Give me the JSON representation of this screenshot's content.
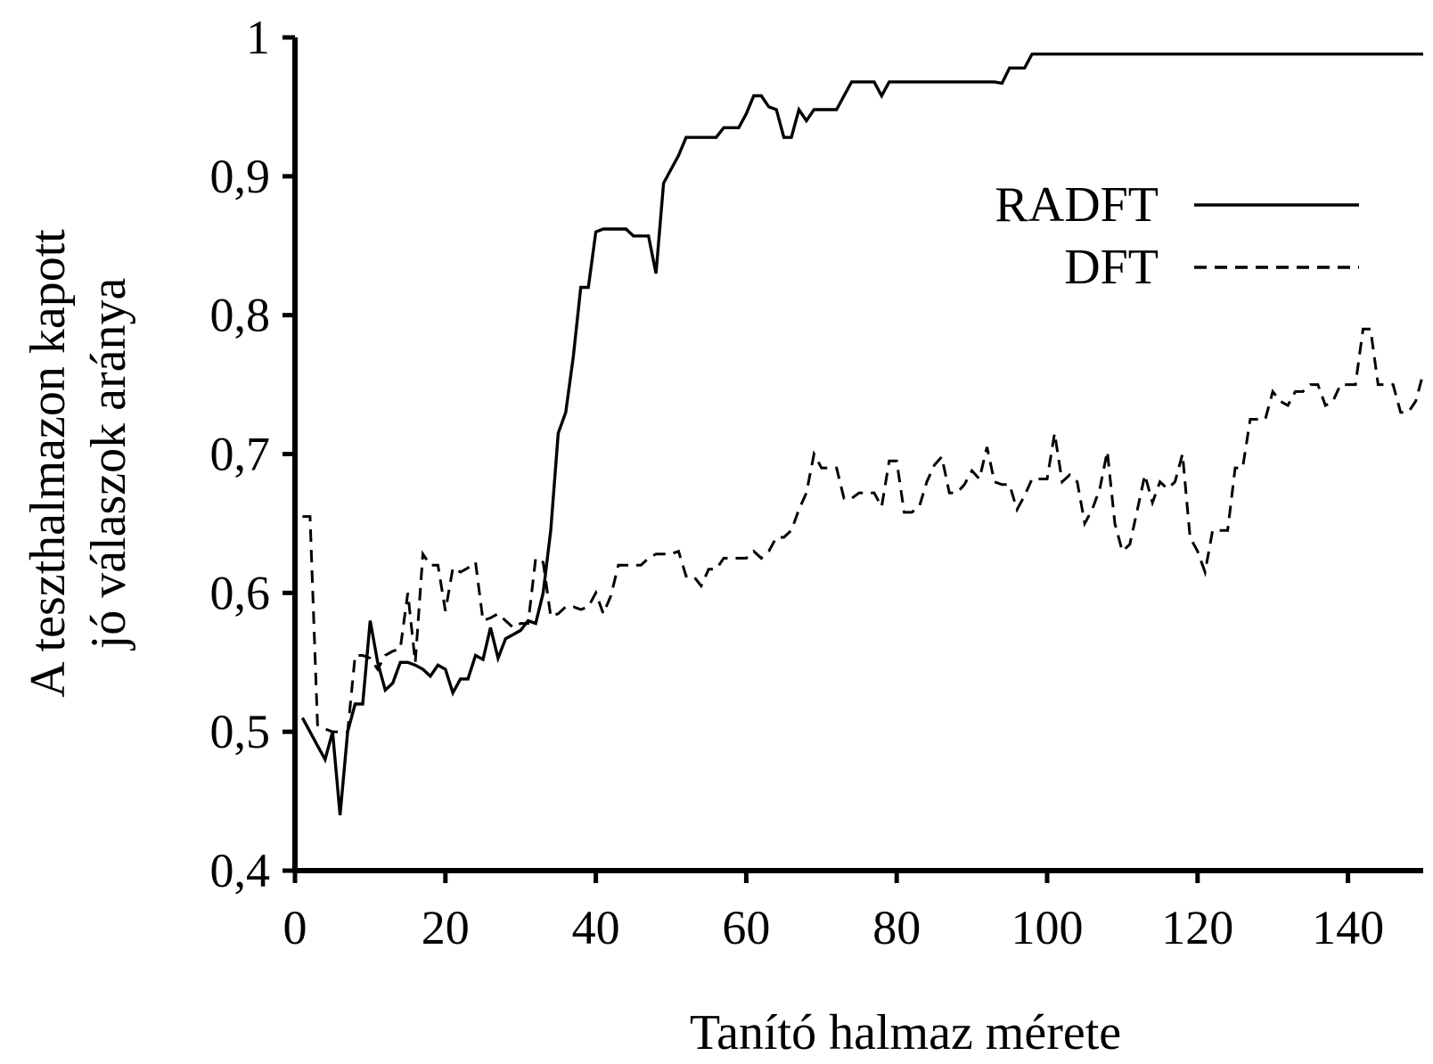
{
  "chart_data": {
    "type": "line",
    "xlabel": "Tanító halmaz mérete",
    "ylabel_lines": [
      "A teszthalmazon kapott",
      "jó válaszok aránya"
    ],
    "xlim": [
      0,
      150
    ],
    "ylim": [
      0.4,
      1.0
    ],
    "x_ticks": [
      {
        "value": 0,
        "label": "0"
      },
      {
        "value": 20,
        "label": "20"
      },
      {
        "value": 40,
        "label": "40"
      },
      {
        "value": 60,
        "label": "60"
      },
      {
        "value": 80,
        "label": "80"
      },
      {
        "value": 100,
        "label": "100"
      },
      {
        "value": 120,
        "label": "120"
      },
      {
        "value": 140,
        "label": "140"
      }
    ],
    "y_ticks": [
      {
        "value": 0.4,
        "label": "0,4"
      },
      {
        "value": 0.5,
        "label": "0,5"
      },
      {
        "value": 0.6,
        "label": "0,6"
      },
      {
        "value": 0.7,
        "label": "0,7"
      },
      {
        "value": 0.8,
        "label": "0,8"
      },
      {
        "value": 0.9,
        "label": "0,9"
      },
      {
        "value": 1.0,
        "label": "1"
      }
    ],
    "grid": false,
    "legend_position": "top-right",
    "series": [
      {
        "name": "RADFT",
        "style": "solid",
        "color": "#000000",
        "points": [
          [
            1,
            0.51
          ],
          [
            3,
            0.49
          ],
          [
            4,
            0.48
          ],
          [
            5,
            0.5
          ],
          [
            6,
            0.44
          ],
          [
            7,
            0.5
          ],
          [
            8,
            0.52
          ],
          [
            9,
            0.52
          ],
          [
            10,
            0.58
          ],
          [
            11,
            0.55
          ],
          [
            12,
            0.53
          ],
          [
            13,
            0.535
          ],
          [
            14,
            0.55
          ],
          [
            15,
            0.55
          ],
          [
            16,
            0.548
          ],
          [
            17,
            0.545
          ],
          [
            18,
            0.54
          ],
          [
            19,
            0.548
          ],
          [
            20,
            0.545
          ],
          [
            21,
            0.528
          ],
          [
            22,
            0.538
          ],
          [
            23,
            0.538
          ],
          [
            24,
            0.555
          ],
          [
            25,
            0.552
          ],
          [
            26,
            0.575
          ],
          [
            27,
            0.553
          ],
          [
            28,
            0.567
          ],
          [
            29,
            0.57
          ],
          [
            30,
            0.573
          ],
          [
            31,
            0.58
          ],
          [
            32,
            0.578
          ],
          [
            33,
            0.6
          ],
          [
            34,
            0.645
          ],
          [
            35,
            0.715
          ],
          [
            36,
            0.73
          ],
          [
            37,
            0.77
          ],
          [
            38,
            0.82
          ],
          [
            39,
            0.82
          ],
          [
            40,
            0.86
          ],
          [
            41,
            0.862
          ],
          [
            42,
            0.862
          ],
          [
            43,
            0.862
          ],
          [
            44,
            0.862
          ],
          [
            45,
            0.857
          ],
          [
            46,
            0.857
          ],
          [
            47,
            0.857
          ],
          [
            48,
            0.83
          ],
          [
            49,
            0.895
          ],
          [
            50,
            0.905
          ],
          [
            51,
            0.915
          ],
          [
            52,
            0.928
          ],
          [
            53,
            0.928
          ],
          [
            54,
            0.928
          ],
          [
            55,
            0.928
          ],
          [
            56,
            0.928
          ],
          [
            57,
            0.935
          ],
          [
            58,
            0.935
          ],
          [
            59,
            0.935
          ],
          [
            60,
            0.945
          ],
          [
            61,
            0.958
          ],
          [
            62,
            0.958
          ],
          [
            63,
            0.95
          ],
          [
            64,
            0.948
          ],
          [
            65,
            0.928
          ],
          [
            66,
            0.928
          ],
          [
            67,
            0.948
          ],
          [
            68,
            0.94
          ],
          [
            69,
            0.948
          ],
          [
            70,
            0.948
          ],
          [
            71,
            0.948
          ],
          [
            72,
            0.948
          ],
          [
            73,
            0.958
          ],
          [
            74,
            0.968
          ],
          [
            75,
            0.968
          ],
          [
            76,
            0.968
          ],
          [
            77,
            0.968
          ],
          [
            78,
            0.958
          ],
          [
            79,
            0.968
          ],
          [
            80,
            0.968
          ],
          [
            85,
            0.968
          ],
          [
            90,
            0.968
          ],
          [
            93,
            0.968
          ],
          [
            94,
            0.967
          ],
          [
            95,
            0.978
          ],
          [
            96,
            0.978
          ],
          [
            97,
            0.978
          ],
          [
            98,
            0.988
          ],
          [
            100,
            0.988
          ],
          [
            110,
            0.988
          ],
          [
            120,
            0.988
          ],
          [
            130,
            0.988
          ],
          [
            140,
            0.988
          ],
          [
            150,
            0.988
          ]
        ]
      },
      {
        "name": "DFT",
        "style": "dashed",
        "color": "#000000",
        "points": [
          [
            1,
            0.655
          ],
          [
            2,
            0.655
          ],
          [
            3,
            0.505
          ],
          [
            4,
            0.502
          ],
          [
            5,
            0.5
          ],
          [
            6,
            0.5
          ],
          [
            7,
            0.5
          ],
          [
            8,
            0.555
          ],
          [
            9,
            0.555
          ],
          [
            10,
            0.553
          ],
          [
            11,
            0.545
          ],
          [
            12,
            0.555
          ],
          [
            13,
            0.558
          ],
          [
            14,
            0.56
          ],
          [
            15,
            0.6
          ],
          [
            16,
            0.55
          ],
          [
            17,
            0.628
          ],
          [
            18,
            0.62
          ],
          [
            19,
            0.62
          ],
          [
            20,
            0.587
          ],
          [
            21,
            0.618
          ],
          [
            22,
            0.615
          ],
          [
            23,
            0.618
          ],
          [
            24,
            0.622
          ],
          [
            25,
            0.58
          ],
          [
            26,
            0.582
          ],
          [
            27,
            0.585
          ],
          [
            28,
            0.58
          ],
          [
            29,
            0.575
          ],
          [
            30,
            0.578
          ],
          [
            31,
            0.578
          ],
          [
            32,
            0.625
          ],
          [
            33,
            0.622
          ],
          [
            34,
            0.583
          ],
          [
            35,
            0.585
          ],
          [
            36,
            0.59
          ],
          [
            37,
            0.59
          ],
          [
            38,
            0.588
          ],
          [
            39,
            0.59
          ],
          [
            40,
            0.6
          ],
          [
            41,
            0.585
          ],
          [
            42,
            0.598
          ],
          [
            43,
            0.62
          ],
          [
            44,
            0.62
          ],
          [
            45,
            0.62
          ],
          [
            46,
            0.62
          ],
          [
            47,
            0.625
          ],
          [
            48,
            0.628
          ],
          [
            49,
            0.628
          ],
          [
            50,
            0.628
          ],
          [
            51,
            0.63
          ],
          [
            52,
            0.612
          ],
          [
            53,
            0.612
          ],
          [
            54,
            0.605
          ],
          [
            55,
            0.617
          ],
          [
            56,
            0.617
          ],
          [
            57,
            0.625
          ],
          [
            58,
            0.625
          ],
          [
            59,
            0.625
          ],
          [
            60,
            0.625
          ],
          [
            61,
            0.63
          ],
          [
            62,
            0.625
          ],
          [
            63,
            0.63
          ],
          [
            64,
            0.64
          ],
          [
            65,
            0.64
          ],
          [
            66,
            0.645
          ],
          [
            67,
            0.66
          ],
          [
            68,
            0.672
          ],
          [
            69,
            0.7
          ],
          [
            70,
            0.69
          ],
          [
            71,
            0.69
          ],
          [
            72,
            0.69
          ],
          [
            73,
            0.668
          ],
          [
            74,
            0.668
          ],
          [
            75,
            0.672
          ],
          [
            76,
            0.672
          ],
          [
            77,
            0.672
          ],
          [
            78,
            0.662
          ],
          [
            79,
            0.695
          ],
          [
            80,
            0.695
          ],
          [
            81,
            0.658
          ],
          [
            82,
            0.658
          ],
          [
            83,
            0.662
          ],
          [
            84,
            0.68
          ],
          [
            85,
            0.692
          ],
          [
            86,
            0.698
          ],
          [
            87,
            0.672
          ],
          [
            88,
            0.672
          ],
          [
            89,
            0.678
          ],
          [
            90,
            0.688
          ],
          [
            91,
            0.682
          ],
          [
            92,
            0.705
          ],
          [
            93,
            0.68
          ],
          [
            94,
            0.678
          ],
          [
            95,
            0.678
          ],
          [
            96,
            0.66
          ],
          [
            97,
            0.67
          ],
          [
            98,
            0.682
          ],
          [
            99,
            0.682
          ],
          [
            100,
            0.682
          ],
          [
            101,
            0.715
          ],
          [
            102,
            0.68
          ],
          [
            103,
            0.685
          ],
          [
            104,
            0.68
          ],
          [
            105,
            0.65
          ],
          [
            106,
            0.66
          ],
          [
            107,
            0.675
          ],
          [
            108,
            0.702
          ],
          [
            109,
            0.65
          ],
          [
            110,
            0.63
          ],
          [
            111,
            0.635
          ],
          [
            112,
            0.66
          ],
          [
            113,
            0.685
          ],
          [
            114,
            0.665
          ],
          [
            115,
            0.68
          ],
          [
            116,
            0.675
          ],
          [
            117,
            0.68
          ],
          [
            118,
            0.7
          ],
          [
            119,
            0.64
          ],
          [
            120,
            0.63
          ],
          [
            121,
            0.615
          ],
          [
            122,
            0.645
          ],
          [
            123,
            0.645
          ],
          [
            124,
            0.645
          ],
          [
            125,
            0.69
          ],
          [
            126,
            0.69
          ],
          [
            127,
            0.725
          ],
          [
            128,
            0.725
          ],
          [
            129,
            0.725
          ],
          [
            130,
            0.745
          ],
          [
            131,
            0.738
          ],
          [
            132,
            0.735
          ],
          [
            133,
            0.745
          ],
          [
            134,
            0.745
          ],
          [
            135,
            0.75
          ],
          [
            136,
            0.75
          ],
          [
            137,
            0.735
          ],
          [
            138,
            0.738
          ],
          [
            139,
            0.75
          ],
          [
            140,
            0.75
          ],
          [
            141,
            0.75
          ],
          [
            142,
            0.79
          ],
          [
            143,
            0.79
          ],
          [
            144,
            0.75
          ],
          [
            145,
            0.75
          ],
          [
            146,
            0.75
          ],
          [
            147,
            0.73
          ],
          [
            148,
            0.73
          ],
          [
            149,
            0.738
          ],
          [
            150,
            0.758
          ]
        ]
      }
    ]
  }
}
